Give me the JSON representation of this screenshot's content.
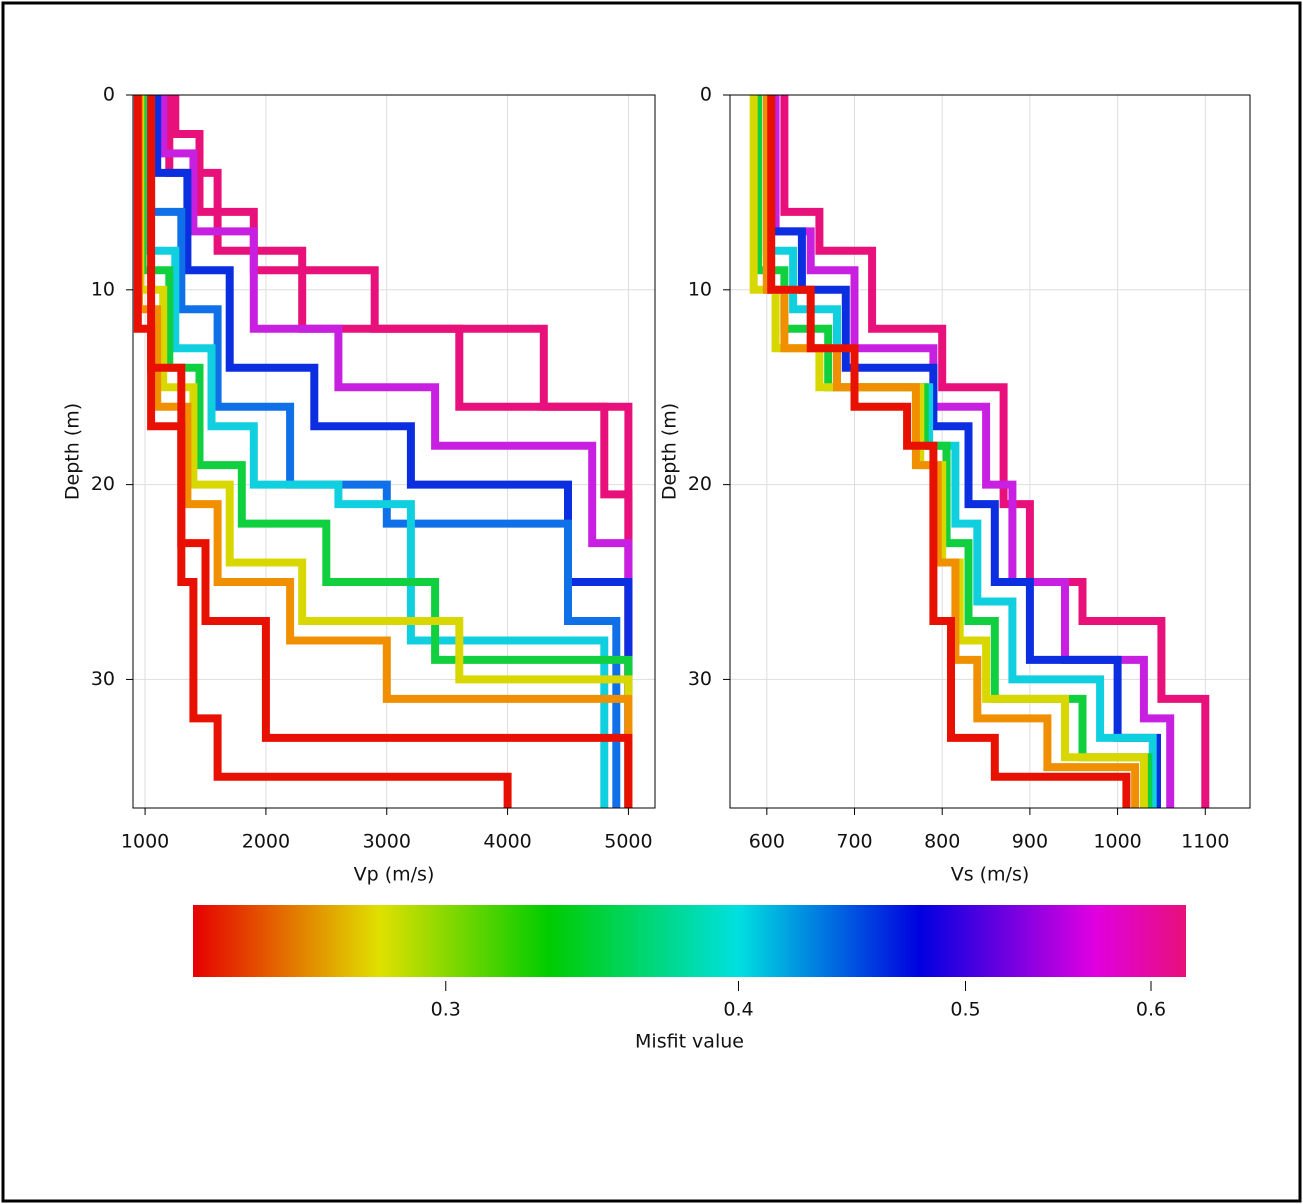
{
  "chart_data": [
    {
      "type": "line",
      "xlabel": "Vp (m/s)",
      "ylabel": "Depth (m)",
      "xlim": [
        900,
        5220
      ],
      "ylim": [
        0,
        36.6
      ],
      "y_inverted": true,
      "xticks": [
        1000,
        2000,
        3000,
        4000,
        5000
      ],
      "yticks": [
        0,
        10,
        20,
        30
      ],
      "grid": true,
      "series": [
        {
          "color": "#e8107a",
          "x": [
            1250,
            1250,
            1450,
            1450,
            1900,
            1900,
            2900,
            2900,
            4300,
            4300,
            5000,
            5000
          ],
          "values": [
            0,
            2,
            2,
            6,
            6,
            9,
            9,
            12,
            12,
            16,
            16,
            36.6
          ]
        },
        {
          "color": "#e8107a",
          "x": [
            1200,
            1200,
            1600,
            1600,
            2300,
            2300,
            3600,
            3600,
            4800,
            4800,
            5000,
            5000
          ],
          "values": [
            0,
            4,
            4,
            8,
            8,
            12,
            12,
            16,
            16,
            20.5,
            20.5,
            36.6
          ]
        },
        {
          "color": "#c820e0",
          "x": [
            1150,
            1150,
            1400,
            1400,
            1900,
            1900,
            2600,
            2600,
            3400,
            3400,
            4700,
            4700,
            5000,
            5000
          ],
          "values": [
            0,
            3,
            3,
            7,
            7,
            12,
            12,
            15,
            15,
            18,
            18,
            23,
            23,
            36.6
          ]
        },
        {
          "color": "#0a2ee0",
          "x": [
            1100,
            1100,
            1350,
            1350,
            1700,
            1700,
            2400,
            2400,
            3200,
            3200,
            4500,
            4500,
            5000,
            5000
          ],
          "values": [
            0,
            4,
            4,
            9,
            9,
            14,
            14,
            17,
            17,
            20,
            20,
            25,
            25,
            36.6
          ]
        },
        {
          "color": "#1070e8",
          "x": [
            1050,
            1050,
            1300,
            1300,
            1600,
            1600,
            2200,
            2200,
            3000,
            3000,
            4500,
            4500,
            4900,
            4900
          ],
          "values": [
            0,
            6,
            6,
            11,
            11,
            16,
            16,
            20,
            20,
            22,
            22,
            27,
            27,
            36.6
          ]
        },
        {
          "color": "#10d0e0",
          "x": [
            1000,
            1000,
            1250,
            1250,
            1550,
            1550,
            1900,
            1900,
            2600,
            2600,
            3200,
            3200,
            4800,
            4800
          ],
          "values": [
            0,
            8,
            8,
            13,
            13,
            17,
            17,
            20,
            20,
            21,
            21,
            28,
            28,
            36.6
          ]
        },
        {
          "color": "#10d040",
          "x": [
            980,
            980,
            1200,
            1200,
            1450,
            1450,
            1800,
            1800,
            2500,
            2500,
            3400,
            3400,
            5000,
            5000
          ],
          "values": [
            0,
            9,
            9,
            14,
            14,
            19,
            19,
            22,
            22,
            25,
            25,
            29,
            29,
            36.6
          ]
        },
        {
          "color": "#d8d800",
          "x": [
            960,
            960,
            1150,
            1150,
            1400,
            1400,
            1700,
            1700,
            2300,
            2300,
            3600,
            3600,
            5000,
            5000
          ],
          "values": [
            0,
            10,
            10,
            15,
            15,
            20,
            20,
            24,
            24,
            27,
            27,
            30,
            30,
            36.6
          ]
        },
        {
          "color": "#f09000",
          "x": [
            950,
            950,
            1100,
            1100,
            1350,
            1350,
            1600,
            1600,
            2200,
            2200,
            3000,
            3000,
            5000,
            5000
          ],
          "values": [
            0,
            11,
            11,
            16,
            16,
            21,
            21,
            25,
            25,
            28,
            28,
            31,
            31,
            36.6
          ]
        },
        {
          "color": "#e81000",
          "x": [
            940,
            940,
            1050,
            1050,
            1300,
            1300,
            1500,
            1500,
            2000,
            2000,
            5000,
            5000
          ],
          "values": [
            0,
            12,
            12,
            17,
            17,
            23,
            23,
            27,
            27,
            33,
            33,
            36.6
          ]
        },
        {
          "color": "#e81000",
          "x": [
            1050,
            1050,
            1300,
            1300,
            1400,
            1400,
            1600,
            1600,
            4000,
            4000
          ],
          "values": [
            0,
            14,
            14,
            25,
            25,
            32,
            32,
            35,
            35,
            36.6
          ]
        }
      ]
    },
    {
      "type": "line",
      "xlabel": "Vs (m/s)",
      "ylabel": "Depth (m)",
      "xlim": [
        558,
        1151
      ],
      "ylim": [
        0,
        36.6
      ],
      "y_inverted": true,
      "xticks": [
        600,
        700,
        800,
        900,
        1000,
        1100
      ],
      "yticks": [
        0,
        10,
        20,
        30
      ],
      "grid": true,
      "series": [
        {
          "color": "#e8107a",
          "x": [
            620,
            620,
            660,
            660,
            720,
            720,
            800,
            800,
            870,
            870,
            900,
            900,
            960,
            960,
            1050,
            1050,
            1100,
            1100
          ],
          "values": [
            0,
            6,
            6,
            8,
            8,
            12,
            12,
            15,
            15,
            21,
            21,
            25,
            25,
            27,
            27,
            31,
            31,
            36.6
          ]
        },
        {
          "color": "#c820e0",
          "x": [
            610,
            610,
            650,
            650,
            700,
            700,
            790,
            790,
            850,
            850,
            880,
            880,
            940,
            940,
            1030,
            1030,
            1060,
            1060
          ],
          "values": [
            0,
            7,
            7,
            9,
            9,
            13,
            13,
            16,
            16,
            20,
            20,
            25,
            25,
            29,
            29,
            32,
            32,
            36.6
          ]
        },
        {
          "color": "#0a2ee0",
          "x": [
            605,
            605,
            640,
            640,
            690,
            690,
            790,
            790,
            830,
            830,
            860,
            860,
            900,
            900,
            1000,
            1000,
            1045,
            1045
          ],
          "values": [
            0,
            7,
            7,
            10,
            10,
            14,
            14,
            17,
            17,
            21,
            21,
            25,
            25,
            29,
            29,
            33,
            33,
            36.6
          ]
        },
        {
          "color": "#10d0e0",
          "x": [
            600,
            600,
            630,
            630,
            680,
            680,
            785,
            785,
            815,
            815,
            840,
            840,
            880,
            880,
            980,
            980,
            1040,
            1040
          ],
          "values": [
            0,
            8,
            8,
            11,
            11,
            15,
            15,
            18,
            18,
            22,
            22,
            26,
            26,
            30,
            30,
            33,
            33,
            36.6
          ]
        },
        {
          "color": "#10d040",
          "x": [
            590,
            590,
            620,
            620,
            670,
            670,
            780,
            780,
            805,
            805,
            830,
            830,
            860,
            860,
            960,
            960,
            1035,
            1035
          ],
          "values": [
            0,
            9,
            9,
            12,
            12,
            15,
            15,
            18,
            18,
            23,
            23,
            27,
            27,
            31,
            31,
            34,
            34,
            36.6
          ]
        },
        {
          "color": "#d8d800",
          "x": [
            585,
            585,
            610,
            610,
            660,
            660,
            775,
            775,
            800,
            800,
            820,
            820,
            850,
            850,
            940,
            940,
            1030,
            1030
          ],
          "values": [
            0,
            10,
            10,
            13,
            13,
            15,
            15,
            19,
            19,
            24,
            24,
            28,
            28,
            31,
            31,
            34,
            34,
            36.6
          ]
        },
        {
          "color": "#f09000",
          "x": [
            600,
            600,
            620,
            620,
            680,
            680,
            770,
            770,
            795,
            795,
            815,
            815,
            840,
            840,
            920,
            920,
            1020,
            1020
          ],
          "values": [
            0,
            10,
            10,
            13,
            13,
            15,
            15,
            19,
            19,
            24,
            24,
            29,
            29,
            32,
            32,
            34.5,
            34.5,
            36.6
          ]
        },
        {
          "color": "#e81000",
          "x": [
            605,
            605,
            650,
            650,
            700,
            700,
            760,
            760,
            790,
            790,
            810,
            810,
            860,
            860,
            1010,
            1010
          ],
          "values": [
            0,
            10,
            10,
            13,
            13,
            16,
            16,
            18,
            18,
            27,
            27,
            33,
            33,
            35,
            35,
            36.6
          ]
        }
      ]
    },
    {
      "type": "colorbar",
      "xlabel": "Misfit value",
      "xlim": [
        0.234,
        0.621
      ],
      "log": true,
      "xticks": [
        0.3,
        0.4,
        0.5,
        0.6
      ],
      "stops": [
        {
          "value": 0.234,
          "color": "#e60000"
        },
        {
          "value": 0.281,
          "color": "#e0e000"
        },
        {
          "value": 0.332,
          "color": "#00cc00"
        },
        {
          "value": 0.4,
          "color": "#00e0e0"
        },
        {
          "value": 0.478,
          "color": "#0000e0"
        },
        {
          "value": 0.568,
          "color": "#e000e0"
        },
        {
          "value": 0.621,
          "color": "#e8107a"
        }
      ]
    }
  ]
}
